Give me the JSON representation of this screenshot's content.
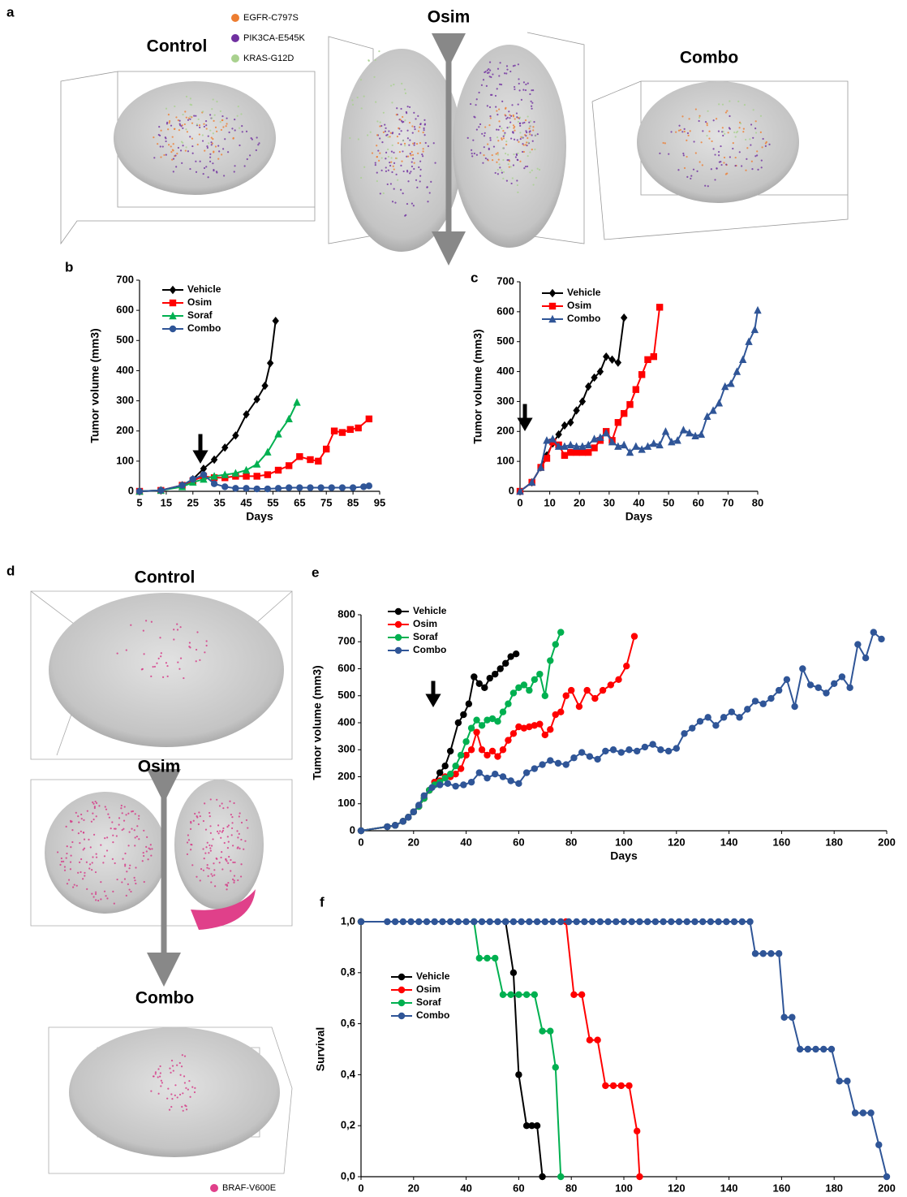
{
  "figure": {
    "panel_letters": [
      "a",
      "b",
      "c",
      "d",
      "e",
      "f"
    ],
    "panel_a": {
      "labels": [
        "Control",
        "Osim",
        "Combo"
      ],
      "legend": [
        "EGFR-C797S",
        "PIK3CA-E545K",
        "KRAS-G12D"
      ]
    },
    "panel_d": {
      "labels": [
        "Control",
        "Osim",
        "Combo"
      ],
      "legend": [
        "BRAF-V600E"
      ]
    }
  },
  "chart_data": [
    {
      "type": "line",
      "xlabel": "Days",
      "ylabel": "Tumor volume (mm3)",
      "legend": "upper left",
      "xlim": [
        5,
        95
      ],
      "xticks": [
        5,
        15,
        25,
        35,
        45,
        55,
        65,
        75,
        85,
        95
      ],
      "ylim": [
        0,
        700
      ],
      "yticks": [
        0,
        100,
        200,
        300,
        400,
        500,
        600,
        700
      ],
      "series": [
        {
          "name": "Vehicle",
          "color": "#000000",
          "marker": "diamond",
          "x": [
            5,
            13,
            21,
            25,
            29,
            33,
            37,
            41,
            45,
            49,
            52,
            54,
            56
          ],
          "values": [
            0,
            3,
            20,
            40,
            75,
            105,
            145,
            185,
            255,
            305,
            350,
            425,
            565
          ]
        },
        {
          "name": "Osim",
          "color": "#ff0000",
          "marker": "square",
          "x": [
            5,
            13,
            21,
            25,
            29,
            33,
            37,
            41,
            45,
            49,
            53,
            57,
            61,
            65,
            69,
            72,
            75,
            78,
            81,
            84,
            87,
            91
          ],
          "values": [
            0,
            3,
            20,
            35,
            50,
            45,
            45,
            50,
            50,
            50,
            55,
            70,
            85,
            115,
            105,
            100,
            140,
            200,
            195,
            205,
            210,
            240
          ]
        },
        {
          "name": "Soraf",
          "color": "#00b050",
          "marker": "triangle",
          "x": [
            5,
            13,
            21,
            25,
            29,
            33,
            37,
            41,
            45,
            49,
            53,
            57,
            61,
            64
          ],
          "values": [
            0,
            3,
            15,
            30,
            40,
            50,
            55,
            60,
            70,
            90,
            130,
            190,
            240,
            295
          ]
        },
        {
          "name": "Combo",
          "color": "#2f5597",
          "marker": "circle",
          "x": [
            5,
            13,
            21,
            25,
            29,
            33,
            37,
            41,
            45,
            49,
            53,
            57,
            61,
            65,
            69,
            73,
            77,
            81,
            85,
            89,
            91
          ],
          "values": [
            0,
            3,
            20,
            40,
            55,
            25,
            15,
            10,
            10,
            8,
            8,
            10,
            12,
            12,
            12,
            12,
            12,
            12,
            12,
            15,
            18
          ]
        }
      ]
    },
    {
      "type": "line",
      "xlabel": "Days",
      "ylabel": "Tumor volume (mm3)",
      "legend": "upper left",
      "xlim": [
        0,
        80
      ],
      "xticks": [
        0,
        10,
        20,
        30,
        40,
        50,
        60,
        70,
        80
      ],
      "ylim": [
        0,
        700
      ],
      "yticks": [
        0,
        100,
        200,
        300,
        400,
        500,
        600,
        700
      ],
      "series": [
        {
          "name": "Vehicle",
          "color": "#000000",
          "marker": "diamond",
          "x": [
            0,
            4,
            7,
            9,
            11,
            13,
            15,
            17,
            19,
            21,
            23,
            25,
            27,
            29,
            31,
            33,
            35
          ],
          "values": [
            0,
            30,
            80,
            120,
            160,
            190,
            220,
            230,
            270,
            300,
            350,
            380,
            400,
            450,
            440,
            430,
            580
          ]
        },
        {
          "name": "Osim",
          "color": "#ff0000",
          "marker": "square",
          "x": [
            0,
            4,
            7,
            9,
            11,
            13,
            15,
            17,
            19,
            21,
            23,
            25,
            27,
            29,
            31,
            33,
            35,
            37,
            39,
            41,
            43,
            45,
            47
          ],
          "values": [
            0,
            30,
            80,
            110,
            165,
            155,
            120,
            130,
            130,
            130,
            130,
            145,
            170,
            200,
            170,
            230,
            260,
            290,
            340,
            390,
            440,
            450,
            615
          ]
        },
        {
          "name": "Combo",
          "color": "#2f5597",
          "marker": "triangle",
          "x": [
            0,
            4,
            7,
            9,
            11,
            13,
            15,
            17,
            19,
            21,
            23,
            25,
            27,
            29,
            31,
            33,
            35,
            37,
            39,
            41,
            43,
            45,
            47,
            49,
            51,
            53,
            55,
            57,
            59,
            61,
            63,
            65,
            67,
            69,
            71,
            73,
            75,
            77,
            79,
            80
          ],
          "values": [
            0,
            30,
            80,
            170,
            175,
            150,
            150,
            155,
            150,
            150,
            155,
            175,
            180,
            195,
            165,
            150,
            155,
            130,
            150,
            140,
            150,
            160,
            155,
            200,
            165,
            170,
            205,
            195,
            185,
            190,
            250,
            270,
            295,
            350,
            360,
            400,
            440,
            500,
            540,
            605
          ]
        }
      ]
    },
    {
      "type": "line",
      "xlabel": "Days",
      "ylabel": "Tumor volume (mm3)",
      "legend": "upper left",
      "xlim": [
        0,
        200
      ],
      "xticks": [
        0,
        20,
        40,
        60,
        80,
        100,
        120,
        140,
        160,
        180,
        200
      ],
      "ylim": [
        0,
        800
      ],
      "yticks": [
        0,
        100,
        200,
        300,
        400,
        500,
        600,
        700,
        800
      ],
      "series": [
        {
          "name": "Vehicle",
          "color": "#000000",
          "marker": "circle",
          "x": [
            0,
            10,
            13,
            16,
            18,
            20,
            22,
            24,
            26,
            28,
            30,
            32,
            34,
            37,
            39,
            41,
            43,
            45,
            47,
            49,
            51,
            53,
            55,
            57,
            59
          ],
          "values": [
            0,
            15,
            20,
            35,
            50,
            70,
            90,
            120,
            150,
            180,
            215,
            240,
            295,
            400,
            430,
            470,
            570,
            545,
            530,
            565,
            580,
            600,
            620,
            645,
            655
          ]
        },
        {
          "name": "Osim",
          "color": "#ff0000",
          "marker": "circle",
          "x": [
            0,
            10,
            13,
            16,
            18,
            20,
            22,
            24,
            26,
            28,
            30,
            32,
            34,
            36,
            38,
            40,
            42,
            44,
            46,
            48,
            50,
            52,
            54,
            56,
            58,
            60,
            62,
            64,
            66,
            68,
            70,
            72,
            74,
            76,
            78,
            80,
            83,
            86,
            89,
            92,
            95,
            98,
            101,
            104
          ],
          "values": [
            0,
            15,
            20,
            35,
            50,
            70,
            90,
            120,
            150,
            180,
            185,
            200,
            200,
            210,
            230,
            280,
            300,
            365,
            300,
            280,
            295,
            275,
            300,
            335,
            360,
            385,
            380,
            385,
            390,
            395,
            355,
            375,
            430,
            440,
            500,
            520,
            460,
            520,
            490,
            520,
            540,
            560,
            610,
            720
          ]
        },
        {
          "name": "Soraf",
          "color": "#00b050",
          "marker": "circle",
          "x": [
            0,
            10,
            13,
            16,
            18,
            20,
            22,
            24,
            26,
            28,
            30,
            32,
            34,
            36,
            38,
            40,
            42,
            44,
            46,
            48,
            50,
            52,
            54,
            56,
            58,
            60,
            62,
            64,
            66,
            68,
            70,
            72,
            74,
            76
          ],
          "values": [
            0,
            15,
            20,
            35,
            50,
            70,
            90,
            120,
            150,
            170,
            180,
            195,
            210,
            240,
            280,
            330,
            380,
            410,
            390,
            410,
            415,
            405,
            440,
            470,
            510,
            530,
            540,
            520,
            560,
            580,
            500,
            630,
            690,
            735
          ]
        },
        {
          "name": "Combo",
          "color": "#2f5597",
          "marker": "circle",
          "x": [
            0,
            10,
            13,
            16,
            18,
            20,
            22,
            24,
            27,
            30,
            33,
            36,
            39,
            42,
            45,
            48,
            51,
            54,
            57,
            60,
            63,
            66,
            69,
            72,
            75,
            78,
            81,
            84,
            87,
            90,
            93,
            96,
            99,
            102,
            105,
            108,
            111,
            114,
            117,
            120,
            123,
            126,
            129,
            132,
            135,
            138,
            141,
            144,
            147,
            150,
            153,
            156,
            159,
            162,
            165,
            168,
            171,
            174,
            177,
            180,
            183,
            186,
            189,
            192,
            195,
            198
          ],
          "values": [
            0,
            15,
            20,
            35,
            50,
            70,
            95,
            130,
            160,
            170,
            175,
            165,
            170,
            180,
            215,
            195,
            210,
            200,
            185,
            175,
            215,
            230,
            245,
            260,
            250,
            245,
            270,
            290,
            275,
            265,
            295,
            300,
            290,
            300,
            295,
            310,
            320,
            300,
            295,
            305,
            360,
            380,
            405,
            420,
            390,
            420,
            440,
            420,
            450,
            480,
            470,
            490,
            520,
            560,
            460,
            600,
            540,
            530,
            510,
            545,
            570,
            530,
            690,
            640,
            735,
            710
          ]
        }
      ]
    },
    {
      "type": "line",
      "xlabel": "Days",
      "ylabel": "Survival",
      "legend": "center left",
      "xlim": [
        0,
        200
      ],
      "xticks": [
        0,
        20,
        40,
        60,
        80,
        100,
        120,
        140,
        160,
        180,
        200
      ],
      "ylim": [
        0,
        1
      ],
      "yticks": [
        {
          "value": 0,
          "label": "0,0"
        },
        {
          "value": 0.2,
          "label": "0,2"
        },
        {
          "value": 0.4,
          "label": "0,4"
        },
        {
          "value": 0.6,
          "label": "0,6"
        },
        {
          "value": 0.8,
          "label": "0,8"
        },
        {
          "value": 1,
          "label": "1,0"
        }
      ],
      "series": [
        {
          "name": "Vehicle",
          "color": "#000000",
          "marker": "circle",
          "x": [
            0,
            55,
            58,
            60,
            63,
            65,
            67,
            69
          ],
          "values": [
            1,
            1,
            0.8,
            0.4,
            0.2,
            0.2,
            0.2,
            0
          ]
        },
        {
          "name": "Osim",
          "color": "#ff0000",
          "marker": "circle",
          "x": [
            0,
            78,
            81,
            84,
            87,
            90,
            93,
            96,
            99,
            102,
            105,
            106
          ],
          "values": [
            1,
            1,
            0.714,
            0.714,
            0.536,
            0.536,
            0.357,
            0.357,
            0.357,
            0.357,
            0.179,
            0
          ]
        },
        {
          "name": "Soraf",
          "color": "#00b050",
          "marker": "circle",
          "x": [
            0,
            43,
            45,
            48,
            51,
            54,
            57,
            60,
            63,
            66,
            69,
            72,
            74,
            76
          ],
          "values": [
            1,
            1,
            0.857,
            0.857,
            0.857,
            0.714,
            0.714,
            0.714,
            0.714,
            0.714,
            0.571,
            0.571,
            0.429,
            0
          ]
        },
        {
          "name": "Combo",
          "color": "#2f5597",
          "marker": "circle",
          "x": [
            0,
            10,
            13,
            16,
            19,
            22,
            25,
            28,
            31,
            34,
            37,
            40,
            43,
            46,
            49,
            52,
            55,
            58,
            61,
            64,
            67,
            70,
            73,
            76,
            79,
            82,
            85,
            88,
            91,
            94,
            97,
            100,
            103,
            106,
            109,
            112,
            115,
            118,
            121,
            124,
            127,
            130,
            133,
            136,
            139,
            142,
            145,
            148,
            150,
            153,
            156,
            159,
            161,
            164,
            167,
            170,
            173,
            176,
            179,
            182,
            185,
            188,
            191,
            194,
            197,
            200
          ],
          "values": [
            1,
            1,
            1,
            1,
            1,
            1,
            1,
            1,
            1,
            1,
            1,
            1,
            1,
            1,
            1,
            1,
            1,
            1,
            1,
            1,
            1,
            1,
            1,
            1,
            1,
            1,
            1,
            1,
            1,
            1,
            1,
            1,
            1,
            1,
            1,
            1,
            1,
            1,
            1,
            1,
            1,
            1,
            1,
            1,
            1,
            1,
            1,
            1,
            0.875,
            0.875,
            0.875,
            0.875,
            0.625,
            0.625,
            0.5,
            0.5,
            0.5,
            0.5,
            0.5,
            0.375,
            0.375,
            0.25,
            0.25,
            0.25,
            0.125,
            0
          ]
        }
      ]
    }
  ]
}
